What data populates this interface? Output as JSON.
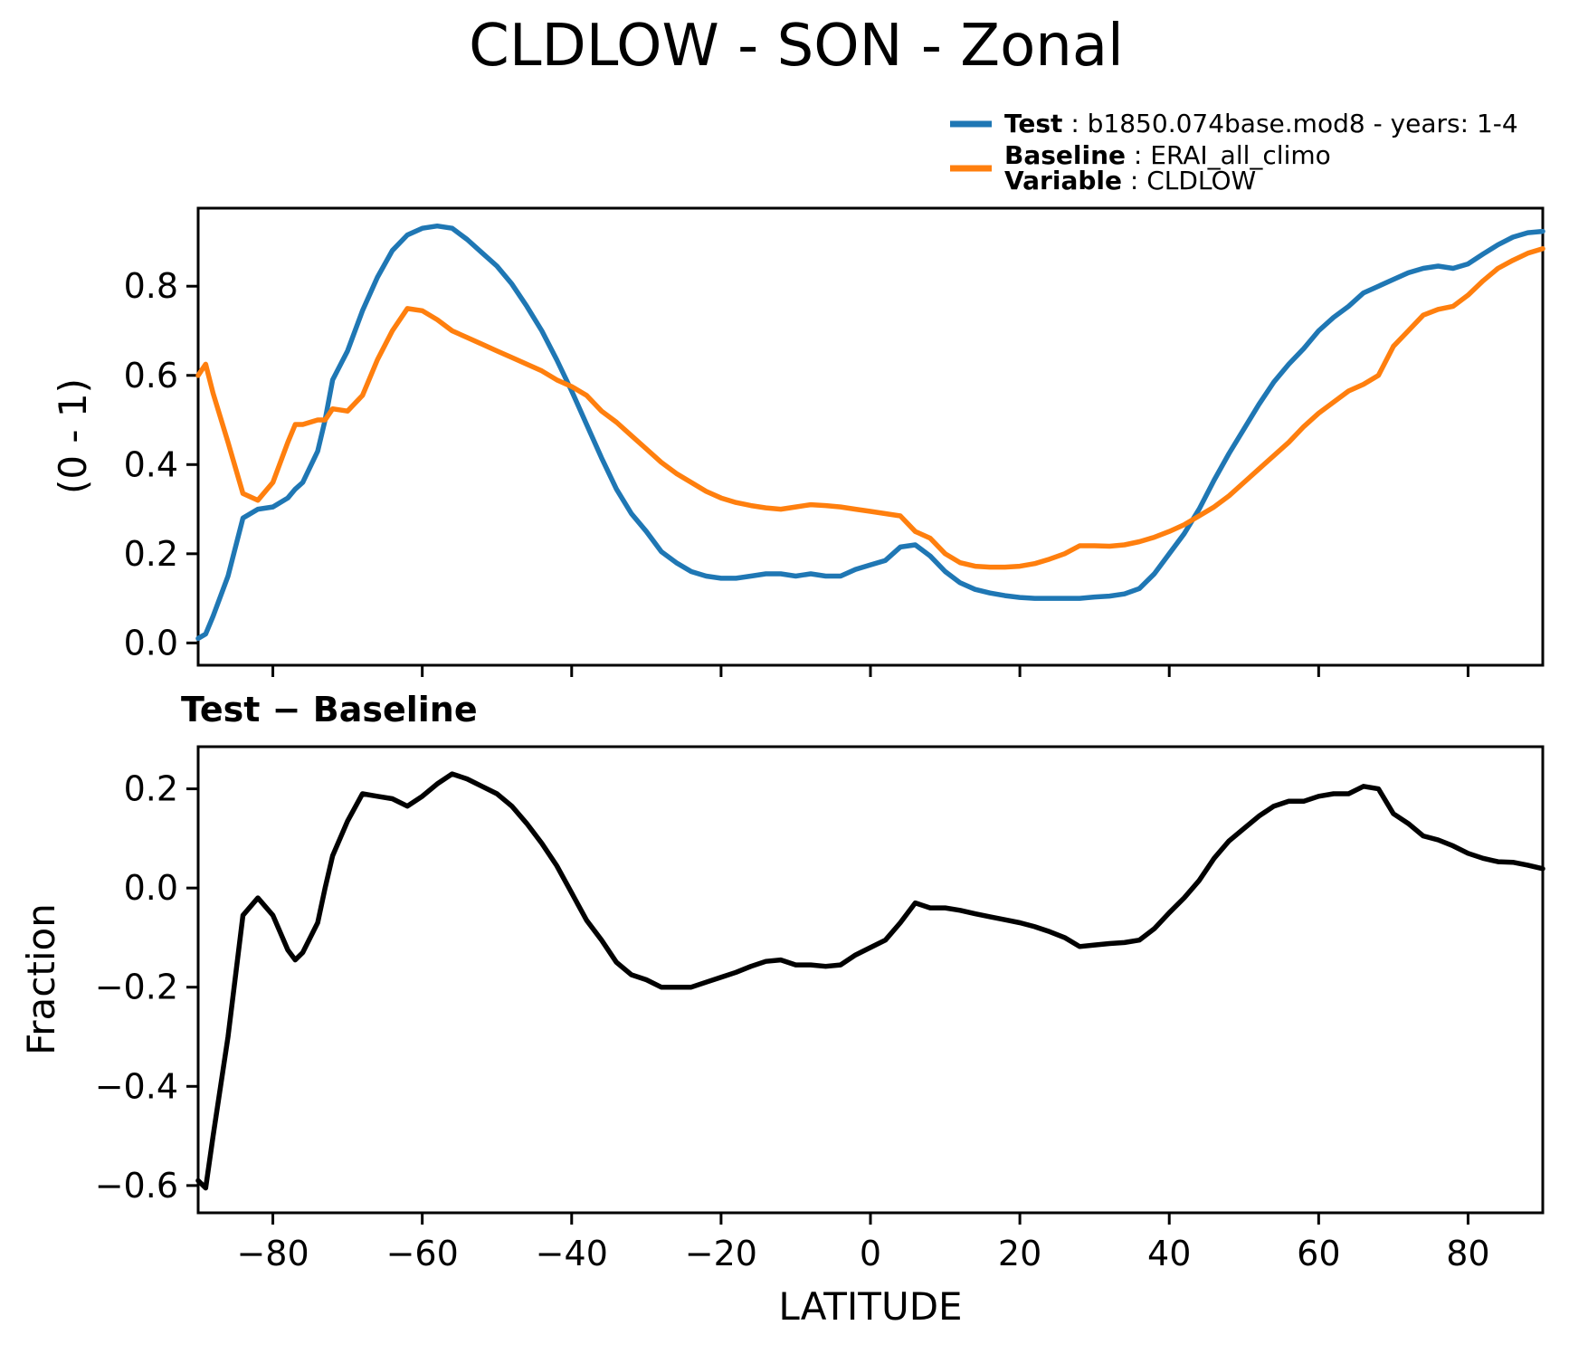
{
  "title": "CLDLOW - SON - Zonal",
  "legend": {
    "sep": " : ",
    "entries": [
      {
        "label": "Test",
        "value": "b1850.074base.mod8 - years: 1-4",
        "color": "#1f77b4"
      },
      {
        "label": "Baseline",
        "value": "ERAI_all_climo",
        "color": "#ff7f0e"
      },
      {
        "label": "Variable",
        "value": "CLDLOW",
        "color": "#ff7f0e"
      }
    ]
  },
  "colors": {
    "test": "#1f77b4",
    "baseline": "#ff7f0e",
    "diff": "#000000",
    "axis": "#000000"
  },
  "xlabel": "LATITUDE",
  "chart_data": [
    {
      "type": "line",
      "title": "CLDLOW - SON - Zonal",
      "ylabel": "(0 - 1)",
      "xlabel": "",
      "legend_position": "top-right",
      "grid": false,
      "xlim": [
        -90,
        90
      ],
      "ylim": [
        -0.05,
        0.975
      ],
      "xticks": [
        -80,
        -60,
        -40,
        -20,
        0,
        20,
        40,
        60,
        80
      ],
      "ytick_values": [
        0.0,
        0.2,
        0.4,
        0.6,
        0.8
      ],
      "ytick_labels": [
        "0.0",
        "0.2",
        "0.4",
        "0.6",
        "0.8"
      ],
      "x": [
        -90,
        -89,
        -88,
        -86,
        -84,
        -82,
        -80,
        -78,
        -77,
        -76,
        -74,
        -73,
        -72,
        -70,
        -68,
        -66,
        -64,
        -62,
        -60,
        -58,
        -56,
        -54,
        -52,
        -50,
        -48,
        -46,
        -44,
        -42,
        -40,
        -38,
        -36,
        -34,
        -32,
        -30,
        -28,
        -26,
        -24,
        -22,
        -20,
        -18,
        -16,
        -14,
        -12,
        -10,
        -8,
        -6,
        -4,
        -2,
        0,
        2,
        4,
        6,
        8,
        10,
        12,
        14,
        16,
        18,
        20,
        22,
        24,
        26,
        28,
        30,
        32,
        34,
        36,
        38,
        40,
        42,
        44,
        46,
        48,
        50,
        52,
        54,
        56,
        58,
        60,
        62,
        64,
        66,
        68,
        70,
        72,
        74,
        76,
        78,
        80,
        82,
        84,
        86,
        88,
        90
      ],
      "series": [
        {
          "name": "Test",
          "color": "#1f77b4",
          "values": [
            0.01,
            0.02,
            0.06,
            0.15,
            0.28,
            0.3,
            0.305,
            0.325,
            0.345,
            0.36,
            0.43,
            0.5,
            0.59,
            0.655,
            0.745,
            0.82,
            0.88,
            0.915,
            0.93,
            0.935,
            0.93,
            0.905,
            0.875,
            0.845,
            0.805,
            0.755,
            0.7,
            0.635,
            0.565,
            0.49,
            0.415,
            0.345,
            0.29,
            0.25,
            0.205,
            0.18,
            0.16,
            0.15,
            0.145,
            0.145,
            0.15,
            0.155,
            0.155,
            0.15,
            0.155,
            0.15,
            0.15,
            0.165,
            0.175,
            0.185,
            0.215,
            0.22,
            0.195,
            0.16,
            0.135,
            0.12,
            0.112,
            0.106,
            0.102,
            0.1,
            0.1,
            0.1,
            0.1,
            0.103,
            0.105,
            0.11,
            0.122,
            0.155,
            0.2,
            0.245,
            0.3,
            0.365,
            0.425,
            0.48,
            0.535,
            0.585,
            0.625,
            0.66,
            0.7,
            0.73,
            0.755,
            0.785,
            0.8,
            0.815,
            0.83,
            0.84,
            0.845,
            0.84,
            0.85,
            0.872,
            0.893,
            0.91,
            0.92,
            0.923
          ]
        },
        {
          "name": "Baseline",
          "color": "#ff7f0e",
          "values": [
            0.6,
            0.625,
            0.56,
            0.45,
            0.335,
            0.32,
            0.36,
            0.45,
            0.49,
            0.49,
            0.5,
            0.5,
            0.525,
            0.52,
            0.555,
            0.635,
            0.7,
            0.75,
            0.745,
            0.725,
            0.7,
            0.685,
            0.67,
            0.655,
            0.64,
            0.625,
            0.61,
            0.59,
            0.575,
            0.555,
            0.52,
            0.495,
            0.465,
            0.435,
            0.405,
            0.38,
            0.36,
            0.34,
            0.325,
            0.315,
            0.308,
            0.303,
            0.3,
            0.305,
            0.31,
            0.308,
            0.305,
            0.3,
            0.295,
            0.29,
            0.285,
            0.25,
            0.235,
            0.2,
            0.18,
            0.172,
            0.17,
            0.17,
            0.172,
            0.178,
            0.188,
            0.2,
            0.218,
            0.218,
            0.217,
            0.22,
            0.227,
            0.237,
            0.25,
            0.265,
            0.285,
            0.305,
            0.33,
            0.36,
            0.39,
            0.42,
            0.45,
            0.485,
            0.515,
            0.54,
            0.565,
            0.58,
            0.6,
            0.665,
            0.7,
            0.735,
            0.748,
            0.755,
            0.78,
            0.812,
            0.84,
            0.858,
            0.874,
            0.884
          ]
        }
      ]
    },
    {
      "type": "line",
      "title": "Test − Baseline",
      "ylabel": "Fraction",
      "xlabel": "LATITUDE",
      "grid": false,
      "xlim": [
        -90,
        90
      ],
      "ylim": [
        -0.655,
        0.285
      ],
      "xticks": [
        -80,
        -60,
        -40,
        -20,
        0,
        20,
        40,
        60,
        80
      ],
      "xtick_labels": [
        "−80",
        "−60",
        "−40",
        "−20",
        "0",
        "20",
        "40",
        "60",
        "80"
      ],
      "ytick_values": [
        0.2,
        0.0,
        -0.2,
        -0.4,
        -0.6
      ],
      "ytick_labels": [
        "0.2",
        "0.0",
        "−0.2",
        "−0.4",
        "−0.6"
      ],
      "x": [
        -90,
        -89,
        -88,
        -86,
        -84,
        -82,
        -80,
        -78,
        -77,
        -76,
        -74,
        -73,
        -72,
        -70,
        -68,
        -66,
        -64,
        -62,
        -60,
        -58,
        -56,
        -54,
        -52,
        -50,
        -48,
        -46,
        -44,
        -42,
        -40,
        -38,
        -36,
        -34,
        -32,
        -30,
        -28,
        -26,
        -24,
        -22,
        -20,
        -18,
        -16,
        -14,
        -12,
        -10,
        -8,
        -6,
        -4,
        -2,
        0,
        2,
        4,
        6,
        8,
        10,
        12,
        14,
        16,
        18,
        20,
        22,
        24,
        26,
        28,
        30,
        32,
        34,
        36,
        38,
        40,
        42,
        44,
        46,
        48,
        50,
        52,
        54,
        56,
        58,
        60,
        62,
        64,
        66,
        68,
        70,
        72,
        74,
        76,
        78,
        80,
        82,
        84,
        86,
        88,
        90
      ],
      "series": [
        {
          "name": "Test - Baseline",
          "color": "#000000",
          "values": [
            -0.59,
            -0.605,
            -0.5,
            -0.3,
            -0.055,
            -0.02,
            -0.055,
            -0.125,
            -0.145,
            -0.13,
            -0.07,
            0.0,
            0.065,
            0.135,
            0.19,
            0.185,
            0.18,
            0.165,
            0.185,
            0.21,
            0.23,
            0.22,
            0.205,
            0.19,
            0.165,
            0.13,
            0.09,
            0.045,
            -0.01,
            -0.065,
            -0.105,
            -0.15,
            -0.175,
            -0.185,
            -0.2,
            -0.2,
            -0.2,
            -0.19,
            -0.18,
            -0.17,
            -0.158,
            -0.148,
            -0.145,
            -0.155,
            -0.155,
            -0.158,
            -0.155,
            -0.135,
            -0.12,
            -0.105,
            -0.07,
            -0.03,
            -0.04,
            -0.04,
            -0.045,
            -0.052,
            -0.058,
            -0.064,
            -0.07,
            -0.078,
            -0.088,
            -0.1,
            -0.118,
            -0.115,
            -0.112,
            -0.11,
            -0.105,
            -0.082,
            -0.05,
            -0.02,
            0.015,
            0.06,
            0.095,
            0.12,
            0.145,
            0.165,
            0.175,
            0.175,
            0.185,
            0.19,
            0.19,
            0.205,
            0.2,
            0.15,
            0.13,
            0.105,
            0.097,
            0.085,
            0.07,
            0.06,
            0.053,
            0.052,
            0.046,
            0.039
          ]
        }
      ]
    }
  ]
}
